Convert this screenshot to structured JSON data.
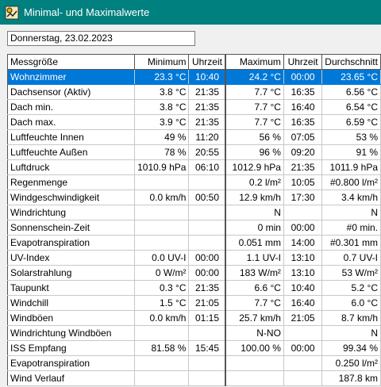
{
  "window": {
    "title": "Minimal- und Maximalwerte"
  },
  "date_field": {
    "value": "Donnerstag, 23.02.2023"
  },
  "table": {
    "headers": [
      "Messgröße",
      "Minimum",
      "Uhrzeit",
      "Maximum",
      "Uhrzeit",
      "Durchschnitt"
    ],
    "rows": [
      [
        "Wohnzimmer",
        "23.3 °C",
        "10:40",
        "24.2 °C",
        "00:00",
        "23.65 °C"
      ],
      [
        "Dachsensor (Aktiv)",
        "3.8 °C",
        "21:35",
        "7.7 °C",
        "16:35",
        "6.56 °C"
      ],
      [
        "Dach min.",
        "3.8 °C",
        "21:35",
        "7.7 °C",
        "16:40",
        "6.54 °C"
      ],
      [
        "Dach max.",
        "3.9 °C",
        "21:35",
        "7.7 °C",
        "16:35",
        "6.59 °C"
      ],
      [
        "Luftfeuchte Innen",
        "49 %",
        "11:20",
        "56 %",
        "07:05",
        "53 %"
      ],
      [
        "Luftfeuchte Außen",
        "78 %",
        "20:55",
        "96 %",
        "09:20",
        "91 %"
      ],
      [
        "Luftdruck",
        "1010.9 hPa",
        "06:10",
        "1012.9 hPa",
        "21:35",
        "1011.9 hPa"
      ],
      [
        "Regenmenge",
        "",
        "",
        "0.2 l/m²",
        "10:05",
        "#0.800 l/m²"
      ],
      [
        "Windgeschwindigkeit",
        "0.0 km/h",
        "00:50",
        "12.9 km/h",
        "17:30",
        "3.4 km/h"
      ],
      [
        "Windrichtung",
        "",
        "",
        "N",
        "",
        "N"
      ],
      [
        "Sonnenschein-Zeit",
        "",
        "",
        "0 min",
        "00:00",
        "#0 min."
      ],
      [
        "Evapotranspiration",
        "",
        "",
        "0.051 mm",
        "14:00",
        "#0.301 mm"
      ],
      [
        "UV-Index",
        "0.0 UV-I",
        "00:00",
        "1.1 UV-I",
        "13:10",
        "0.7 UV-I"
      ],
      [
        "Solarstrahlung",
        "0 W/m²",
        "00:00",
        "183 W/m²",
        "13:10",
        "53 W/m²"
      ],
      [
        "Taupunkt",
        "0.3 °C",
        "21:35",
        "6.6 °C",
        "10:40",
        "5.2 °C"
      ],
      [
        "Windchill",
        "1.5 °C",
        "21:05",
        "7.7 °C",
        "16:40",
        "6.0 °C"
      ],
      [
        "Windböen",
        "0.0 km/h",
        "01:15",
        "25.7 km/h",
        "21:05",
        "8.7 km/h"
      ],
      [
        "Windrichtung Windböen",
        "",
        "",
        "N-NO",
        "",
        "N"
      ],
      [
        "ISS Empfang",
        "81.58 %",
        "15:45",
        "100.00 %",
        "00:00",
        "99.34 %"
      ],
      [
        "Evapotranspiration",
        "",
        "",
        "",
        "",
        "0.250 l/m²"
      ],
      [
        "Wind Verlauf",
        "",
        "",
        "",
        "",
        "187.8 km"
      ]
    ],
    "selected_row": 0
  }
}
